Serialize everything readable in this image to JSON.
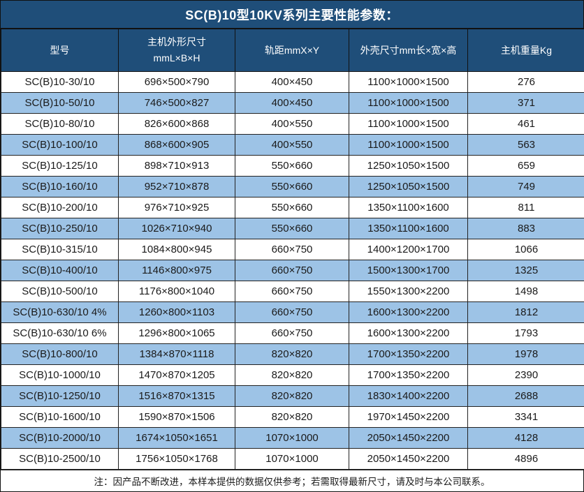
{
  "title": "SC(B)10型10KV系列主要性能参数：",
  "table": {
    "headers": {
      "model": "型号",
      "main_dimensions_line1": "主机外形尺寸",
      "main_dimensions_line2": "mmL×B×H",
      "rail_gauge": "轨距mmX×Y",
      "shell_dimensions": "外壳尺寸mm长×宽×高",
      "weight": "主机重量Kg"
    },
    "rows": [
      [
        "SC(B)10-30/10",
        "696×500×790",
        "400×450",
        "1100×1000×1500",
        "276"
      ],
      [
        "SC(B)10-50/10",
        "746×500×827",
        "400×450",
        "1100×1000×1500",
        "371"
      ],
      [
        "SC(B)10-80/10",
        "826×600×868",
        "400×550",
        "1100×1000×1500",
        "461"
      ],
      [
        "SC(B)10-100/10",
        "868×600×905",
        "400×550",
        "1100×1000×1500",
        "563"
      ],
      [
        "SC(B)10-125/10",
        "898×710×913",
        "550×660",
        "1250×1050×1500",
        "659"
      ],
      [
        "SC(B)10-160/10",
        "952×710×878",
        "550×660",
        "1250×1050×1500",
        "749"
      ],
      [
        "SC(B)10-200/10",
        "976×710×925",
        "550×660",
        "1350×1100×1600",
        "811"
      ],
      [
        "SC(B)10-250/10",
        "1026×710×940",
        "550×660",
        "1350×1100×1600",
        "883"
      ],
      [
        "SC(B)10-315/10",
        "1084×800×945",
        "660×750",
        "1400×1200×1700",
        "1066"
      ],
      [
        "SC(B)10-400/10",
        "1146×800×975",
        "660×750",
        "1500×1300×1700",
        "1325"
      ],
      [
        "SC(B)10-500/10",
        "1176×800×1040",
        "660×750",
        "1550×1300×2200",
        "1498"
      ],
      [
        "SC(B)10-630/10 4%",
        "1260×800×1103",
        "660×750",
        "1600×1300×2200",
        "1812"
      ],
      [
        "SC(B)10-630/10 6%",
        "1296×800×1065",
        "660×750",
        "1600×1300×2200",
        "1793"
      ],
      [
        "SC(B)10-800/10",
        "1384×870×1118",
        "820×820",
        "1700×1350×2200",
        "1978"
      ],
      [
        "SC(B)10-1000/10",
        "1470×870×1205",
        "820×820",
        "1700×1350×2200",
        "2390"
      ],
      [
        "SC(B)10-1250/10",
        "1516×870×1315",
        "820×820",
        "1830×1400×2200",
        "2688"
      ],
      [
        "SC(B)10-1600/10",
        "1590×870×1506",
        "820×820",
        "1970×1450×2200",
        "3341"
      ],
      [
        "SC(B)10-2000/10",
        "1674×1050×1651",
        "1070×1000",
        "2050×1450×2200",
        "4128"
      ],
      [
        "SC(B)10-2500/10",
        "1756×1050×1768",
        "1070×1000",
        "2050×1450×2200",
        "4896"
      ]
    ]
  },
  "note": "注：因产品不断改进，本样本提供的数据仅供参考；若需取得最新尺寸，请及时与本公司联系。",
  "colors": {
    "header_bg": "#1f4e79",
    "alt_row_bg": "#9dc3e6",
    "border": "#1a1a1a",
    "header_text": "#ffffff",
    "body_text": "#1a1a1a"
  }
}
